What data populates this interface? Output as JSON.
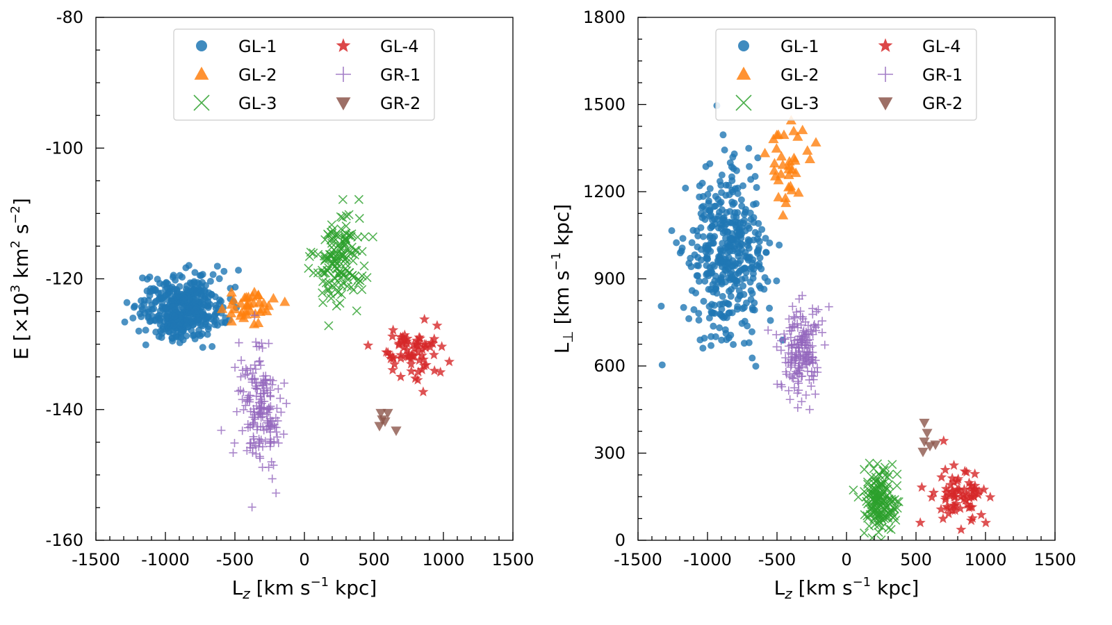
{
  "chart_data": [
    {
      "type": "scatter",
      "id": "left",
      "xlabel": "L_z [km s^-1 kpc]",
      "ylabel": "E [×10^3 km^2 s^-2]",
      "xlim": [
        -1500,
        1500
      ],
      "ylim": [
        -160,
        -80
      ],
      "xticks": [
        -1500,
        -1000,
        -500,
        0,
        500,
        1000,
        1500
      ],
      "xtick_labels": [
        "-1500",
        "-1000",
        "-500",
        "0",
        "500",
        "1000",
        "1500"
      ],
      "yticks": [
        -160,
        -140,
        -120,
        -100,
        -80
      ],
      "ytick_labels": [
        "-160",
        "-140",
        "-120",
        "-100",
        "-80"
      ],
      "grid": false,
      "legend_placement": "top-center",
      "series": [
        {
          "name": "GL-1",
          "marker": "circle",
          "color": "#1f77b4",
          "count": 420,
          "center": [
            -880,
            -124.5
          ],
          "spread": [
            150,
            2.4
          ]
        },
        {
          "name": "GL-2",
          "marker": "triangle-up",
          "color": "#ff7f0e",
          "count": 36,
          "center": [
            -420,
            -124.3
          ],
          "spread": [
            90,
            1.2
          ]
        },
        {
          "name": "GL-3",
          "marker": "x",
          "color": "#2ca02c",
          "count": 150,
          "center": [
            250,
            -117
          ],
          "spread": [
            85,
            3.4
          ]
        },
        {
          "name": "GL-4",
          "marker": "star",
          "color": "#d62728",
          "count": 70,
          "center": [
            780,
            -131.8
          ],
          "spread": [
            110,
            2.3
          ]
        },
        {
          "name": "GR-1",
          "marker": "plus",
          "color": "#9467bd",
          "count": 180,
          "center": [
            -330,
            -139.5
          ],
          "spread": [
            80,
            4.6
          ]
        },
        {
          "name": "GR-2",
          "marker": "triangle-down",
          "color": "#8c564b",
          "count": 6,
          "points": [
            [
              550,
              -140.5
            ],
            [
              600,
              -140.5
            ],
            [
              560,
              -141.5
            ],
            [
              540,
              -142.5
            ],
            [
              580,
              -141.8
            ],
            [
              660,
              -143.2
            ]
          ]
        }
      ]
    },
    {
      "type": "scatter",
      "id": "right",
      "xlabel": "L_z [km s^-1 kpc]",
      "ylabel": "L_⊥ [km s^-1 kpc]",
      "xlim": [
        -1500,
        1500
      ],
      "ylim": [
        0,
        1800
      ],
      "xticks": [
        -1500,
        -1000,
        -500,
        0,
        500,
        1000,
        1500
      ],
      "xtick_labels": [
        "-1500",
        "-1000",
        "-500",
        "0",
        "500",
        "1000",
        "1500"
      ],
      "yticks": [
        0,
        300,
        600,
        900,
        1200,
        1500,
        1800
      ],
      "ytick_labels": [
        "0",
        "300",
        "600",
        "900",
        "1200",
        "1500",
        "1800"
      ],
      "grid": false,
      "legend_placement": "top-center",
      "series": [
        {
          "name": "GL-1",
          "marker": "circle",
          "color": "#1f77b4",
          "count": 420,
          "center": [
            -870,
            980
          ],
          "spread": [
            140,
            140
          ]
        },
        {
          "name": "GL-2",
          "marker": "triangle-up",
          "color": "#ff7f0e",
          "count": 36,
          "center": [
            -430,
            1280
          ],
          "spread": [
            80,
            60
          ]
        },
        {
          "name": "GL-3",
          "marker": "x",
          "color": "#2ca02c",
          "count": 150,
          "center": [
            240,
            140
          ],
          "spread": [
            60,
            55
          ]
        },
        {
          "name": "GL-4",
          "marker": "star",
          "color": "#d62728",
          "count": 70,
          "center": [
            800,
            160
          ],
          "spread": [
            120,
            55
          ]
        },
        {
          "name": "GR-1",
          "marker": "plus",
          "color": "#9467bd",
          "count": 180,
          "center": [
            -330,
            660
          ],
          "spread": [
            80,
            80
          ]
        },
        {
          "name": "GR-2",
          "marker": "triangle-down",
          "color": "#8c564b",
          "count": 6,
          "points": [
            [
              560,
              405
            ],
            [
              580,
              370
            ],
            [
              560,
              340
            ],
            [
              600,
              325
            ],
            [
              640,
              330
            ],
            [
              550,
              305
            ]
          ]
        }
      ]
    }
  ],
  "legend": {
    "entries": [
      "GL-1",
      "GL-4",
      "GL-2",
      "GR-1",
      "GL-3",
      "GR-2"
    ]
  }
}
